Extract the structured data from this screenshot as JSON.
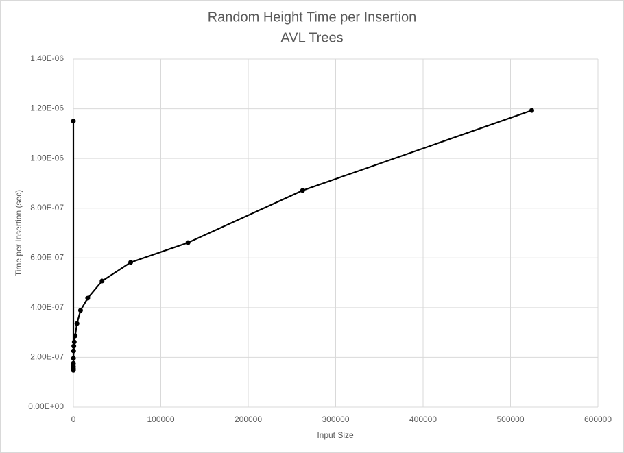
{
  "chart_data": {
    "type": "scatter",
    "title": "Random Height Time per Insertion",
    "subtitle": "AVL Trees",
    "x_label": "Input Size",
    "y_label": "Time per Insertion (sec)",
    "series": [
      {
        "color": "#000000",
        "x": [
          1,
          2,
          4,
          8,
          16,
          32,
          64,
          128,
          256,
          512,
          1024,
          2048,
          4096,
          8192,
          16384,
          32768,
          65536,
          131072,
          262144,
          524288
        ],
        "values": [
          1.15e-06,
          1.5e-07,
          1.48e-07,
          1.52e-07,
          1.56e-07,
          1.63e-07,
          1.76e-07,
          1.96e-07,
          2.26e-07,
          2.45e-07,
          2.62e-07,
          2.87e-07,
          3.36e-07,
          3.89e-07,
          4.38e-07,
          5.07e-07,
          5.82e-07,
          6.61e-07,
          8.71e-07,
          1.193e-06
        ]
      }
    ],
    "xlim": [
      0,
      600000
    ],
    "xticks": [
      0,
      100000,
      200000,
      300000,
      400000,
      500000,
      600000
    ],
    "ylim": [
      0,
      1.4e-06
    ],
    "yticks": [
      {
        "value": 0,
        "label": "0.00E+00"
      },
      {
        "value": 2e-07,
        "label": "2.00E-07"
      },
      {
        "value": 4e-07,
        "label": "4.00E-07"
      },
      {
        "value": 6e-07,
        "label": "6.00E-07"
      },
      {
        "value": 8e-07,
        "label": "8.00E-07"
      },
      {
        "value": 1e-06,
        "label": "1.00E-06"
      },
      {
        "value": 1.2e-06,
        "label": "1.20E-06"
      },
      {
        "value": 1.4e-06,
        "label": "1.40E-06"
      }
    ],
    "grid": true
  }
}
